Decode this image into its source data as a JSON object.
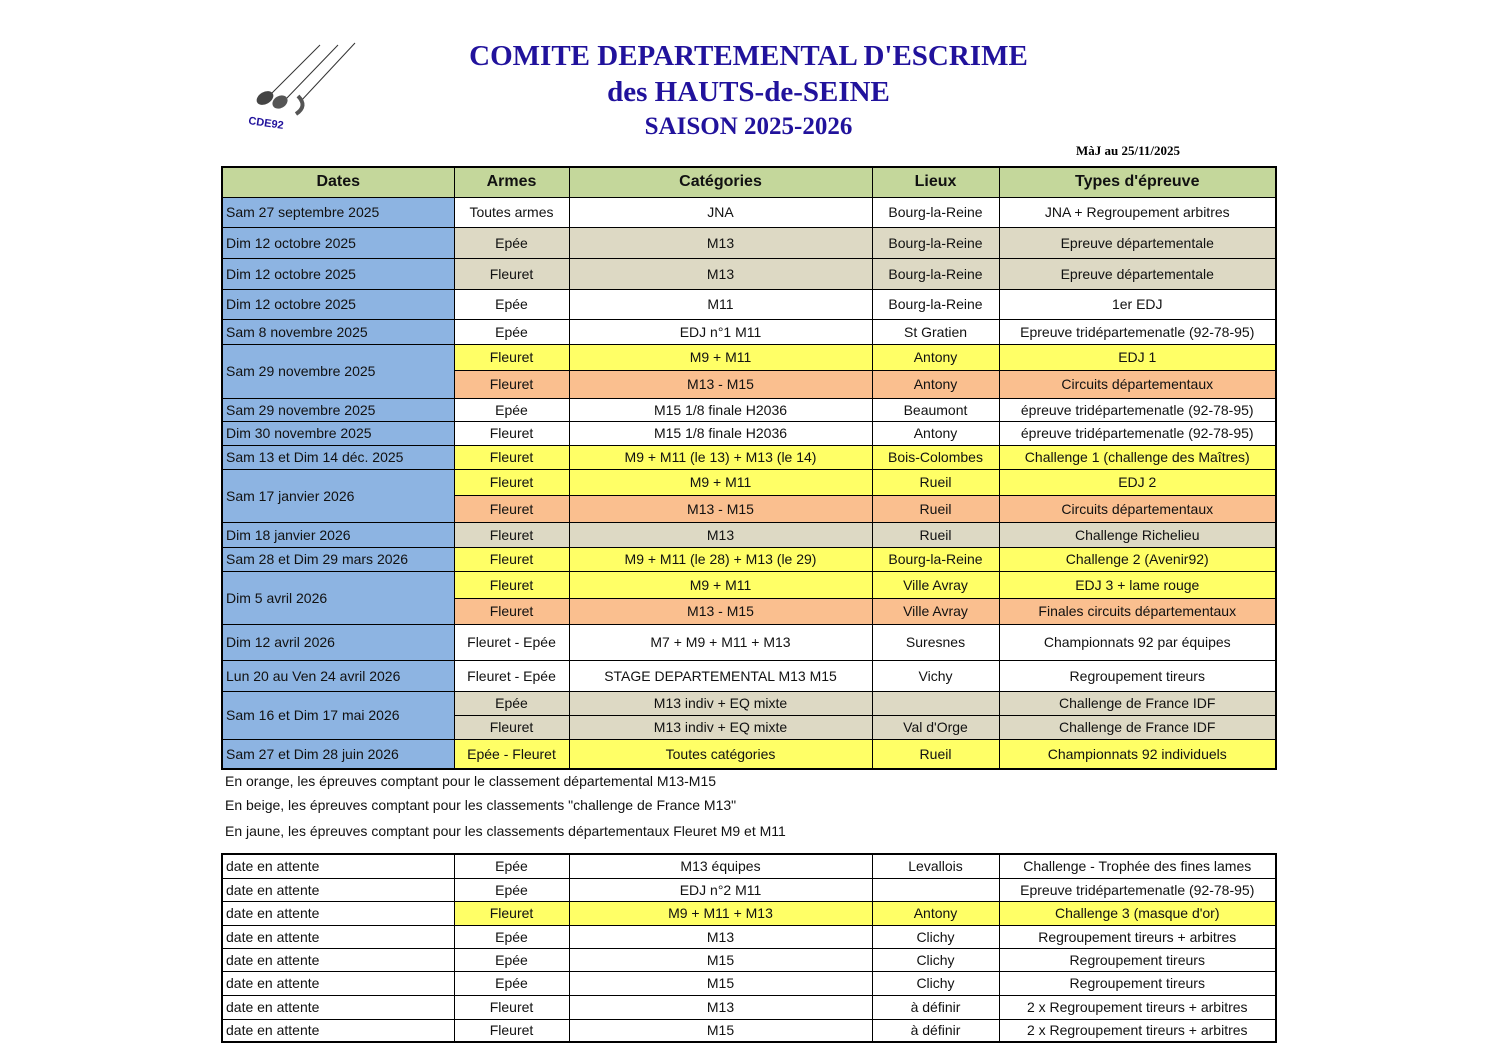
{
  "header": {
    "title1": "COMITE DEPARTEMENTAL D'ESCRIME",
    "title2": "des HAUTS-de-SEINE",
    "title3": "SAISON 2025-2026",
    "updated": "MàJ au 25/11/2025",
    "logo_text": "CDE92"
  },
  "colors": {
    "date": "#8db4e2",
    "header": "#c4d79b",
    "yellow": "#ffff66",
    "orange": "#fabf8f",
    "beige": "#ddd9c4",
    "title": "#21129c"
  },
  "columns": [
    "Dates",
    "Armes",
    "Catégories",
    "Lieux",
    "Types d'épreuve"
  ],
  "events": [
    {
      "date": "Sam 27 septembre 2025",
      "entries": [
        {
          "arme": "Toutes armes",
          "cat": "JNA",
          "lieu": "Bourg-la-Reine",
          "type": "JNA +  Regroupement arbitres",
          "color": "white"
        }
      ]
    },
    {
      "date": "Dim 12 octobre 2025",
      "entries": [
        {
          "arme": "Epée",
          "cat": "M13",
          "lieu": "Bourg-la-Reine",
          "type": "Epreuve départementale",
          "color": "beige"
        }
      ]
    },
    {
      "date": "Dim 12 octobre 2025",
      "entries": [
        {
          "arme": "Fleuret",
          "cat": "M13",
          "lieu": "Bourg-la-Reine",
          "type": "Epreuve départementale",
          "color": "beige"
        }
      ]
    },
    {
      "date": "Dim 12 octobre 2025",
      "entries": [
        {
          "arme": "Epée",
          "cat": "M11",
          "lieu": "Bourg-la-Reine",
          "type": "1er EDJ",
          "color": "white"
        }
      ]
    },
    {
      "date": "Sam 8 novembre 2025",
      "entries": [
        {
          "arme": "Epée",
          "cat": "EDJ n°1  M11",
          "lieu": "St Gratien",
          "type": "Epreuve tridépartemenatle (92-78-95)",
          "color": "white"
        }
      ]
    },
    {
      "date": "Sam 29 novembre 2025",
      "entries": [
        {
          "arme": "Fleuret",
          "cat": "M9 + M11",
          "lieu": "Antony",
          "type": "EDJ 1",
          "color": "yellow"
        },
        {
          "arme": "Fleuret",
          "cat": "M13 - M15",
          "lieu": "Antony",
          "type": "Circuits départementaux",
          "color": "orange"
        }
      ]
    },
    {
      "date": "Sam 29 novembre 2025",
      "entries": [
        {
          "arme": "Epée",
          "cat": "M15  1/8 finale H2036",
          "lieu": "Beaumont",
          "type": "épreuve tridépartemenatle (92-78-95)",
          "color": "white"
        }
      ]
    },
    {
      "date": "Dim 30 novembre 2025",
      "entries": [
        {
          "arme": "Fleuret",
          "cat": "M15  1/8 finale H2036",
          "lieu": "Antony",
          "type": "épreuve tridépartemenatle (92-78-95)",
          "color": "white"
        }
      ]
    },
    {
      "date": "Sam 13 et Dim 14 déc. 2025",
      "entries": [
        {
          "arme": "Fleuret",
          "cat": "M9 + M11 (le 13) + M13 (le 14)",
          "lieu": "Bois-Colombes",
          "type": "Challenge 1 (challenge des Maîtres)",
          "color": "yellow"
        }
      ]
    },
    {
      "date": "Sam 17 janvier 2026",
      "entries": [
        {
          "arme": "Fleuret",
          "cat": "M9 + M11",
          "lieu": "Rueil",
          "type": "EDJ 2",
          "color": "yellow"
        },
        {
          "arme": "Fleuret",
          "cat": "M13 - M15",
          "lieu": "Rueil",
          "type": "Circuits départementaux",
          "color": "orange"
        }
      ]
    },
    {
      "date": "Dim 18 janvier 2026",
      "entries": [
        {
          "arme": "Fleuret",
          "cat": "M13",
          "lieu": "Rueil",
          "type": "Challenge Richelieu",
          "color": "beige"
        }
      ]
    },
    {
      "date": "Sam 28 et Dim 29 mars 2026",
      "entries": [
        {
          "arme": "Fleuret",
          "cat": "M9 + M11 (le 28) + M13 (le 29)",
          "lieu": "Bourg-la-Reine",
          "type": "Challenge 2  (Avenir92)",
          "color": "yellow"
        }
      ]
    },
    {
      "date": "Dim 5 avril 2026",
      "entries": [
        {
          "arme": "Fleuret",
          "cat": "M9 + M11",
          "lieu": "Ville Avray",
          "type": "EDJ 3 + lame rouge",
          "color": "yellow"
        },
        {
          "arme": "Fleuret",
          "cat": "M13 - M15",
          "lieu": "Ville Avray",
          "type": "Finales circuits départementaux",
          "color": "orange"
        }
      ]
    },
    {
      "date": "Dim 12 avril 2026",
      "entries": [
        {
          "arme": "Fleuret - Epée",
          "cat": "M7 + M9 + M11 + M13",
          "lieu": "Suresnes",
          "type": "Championnats 92 par équipes",
          "color": "white"
        }
      ]
    },
    {
      "date": "Lun 20 au Ven 24 avril 2026",
      "entries": [
        {
          "arme": "Fleuret - Epée",
          "cat": "STAGE DEPARTEMENTAL M13  M15",
          "lieu": "Vichy",
          "type": "Regroupement tireurs",
          "color": "white"
        }
      ]
    },
    {
      "date": "Sam 16 et Dim 17 mai 2026",
      "entries": [
        {
          "arme": "Epée",
          "cat": "M13   indiv + EQ mixte",
          "lieu": "",
          "type": "Challenge de France IDF",
          "color": "beige"
        },
        {
          "arme": "Fleuret",
          "cat": "M13 indiv + EQ mixte",
          "lieu": "Val d'Orge",
          "type": "Challenge de France IDF",
          "color": "beige"
        }
      ]
    },
    {
      "date": "Sam 27 et Dim 28 juin 2026",
      "entries": [
        {
          "arme": "Epée - Fleuret",
          "cat": "Toutes catégories",
          "lieu": "Rueil",
          "type": "Championnats 92 individuels",
          "color": "yellow"
        }
      ]
    }
  ],
  "notes": [
    "En orange, les épreuves comptant pour le classement départemental M13-M15",
    "En beige, les épreuves comptant pour les classements \"challenge de France M13\"",
    "En jaune, les épreuves comptant pour les classements départementaux   Fleuret M9 et M11"
  ],
  "pending": [
    {
      "date": "date en attente",
      "entries": [
        {
          "arme": "Epée",
          "cat": "M13 équipes",
          "lieu": "Levallois",
          "type": "Challenge - Trophée des fines lames",
          "color": "white"
        }
      ]
    },
    {
      "date": "date en attente",
      "entries": [
        {
          "arme": "Epée",
          "cat": "EDJ n°2  M11",
          "lieu": "",
          "type": "Epreuve tridépartemenatle (92-78-95)",
          "color": "white"
        }
      ]
    },
    {
      "date": "date en attente",
      "entries": [
        {
          "arme": "Fleuret",
          "cat": "M9 + M11 + M13",
          "lieu": "Antony",
          "type": "Challenge 3  (masque d'or)",
          "color": "yellow"
        }
      ]
    },
    {
      "date": "date en attente",
      "entries": [
        {
          "arme": "Epée",
          "cat": "M13",
          "lieu": "Clichy",
          "type": "Regroupement tireurs + arbitres",
          "color": "white"
        }
      ]
    },
    {
      "date": "date en attente",
      "entries": [
        {
          "arme": "Epée",
          "cat": "M15",
          "lieu": "Clichy",
          "type": "Regroupement tireurs",
          "color": "white"
        }
      ]
    },
    {
      "date": "date en attente",
      "entries": [
        {
          "arme": "Epée",
          "cat": "M15",
          "lieu": "Clichy",
          "type": "Regroupement tireurs",
          "color": "white"
        }
      ]
    },
    {
      "date": "date en attente",
      "entries": [
        {
          "arme": "Fleuret",
          "cat": "M13",
          "lieu": "à définir",
          "type": "2 x Regroupement tireurs + arbitres",
          "color": "white"
        }
      ]
    },
    {
      "date": "date en attente",
      "entries": [
        {
          "arme": "Fleuret",
          "cat": "M15",
          "lieu": "à définir",
          "type": "2 x Regroupement tireurs + arbitres",
          "color": "white"
        }
      ]
    }
  ]
}
